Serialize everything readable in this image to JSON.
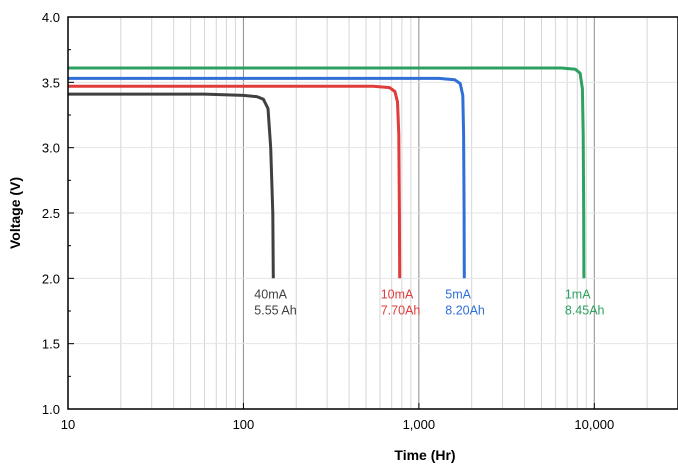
{
  "chart_data": {
    "type": "line",
    "title": "",
    "xlabel": "Time (Hr)",
    "ylabel": "Voltage (V)",
    "x_scale": "log",
    "xlim": [
      10,
      30000
    ],
    "ylim": [
      1.0,
      4.0
    ],
    "x_ticks": [
      {
        "value": 10,
        "label": "10"
      },
      {
        "value": 100,
        "label": "100"
      },
      {
        "value": 1000,
        "label": "1,000"
      },
      {
        "value": 10000,
        "label": "10,000"
      }
    ],
    "y_ticks": [
      {
        "value": 1.0,
        "label": "1.0"
      },
      {
        "value": 1.5,
        "label": "1.5"
      },
      {
        "value": 2.0,
        "label": "2.0"
      },
      {
        "value": 2.5,
        "label": "2.5"
      },
      {
        "value": 3.0,
        "label": "3.0"
      },
      {
        "value": 3.5,
        "label": "3.5"
      },
      {
        "value": 4.0,
        "label": "4.0"
      }
    ],
    "grid": true,
    "series": [
      {
        "color": "#404040",
        "x": [
          10,
          60,
          100,
          120,
          130,
          138,
          143,
          147,
          148
        ],
        "y": [
          3.41,
          3.41,
          3.4,
          3.39,
          3.37,
          3.3,
          3.0,
          2.5,
          2.0
        ],
        "annotation": [
          "40mA",
          "5.55 Ah"
        ]
      },
      {
        "color": "#e03c3c",
        "x": [
          10,
          300,
          550,
          680,
          730,
          755,
          768,
          775,
          778
        ],
        "y": [
          3.47,
          3.47,
          3.47,
          3.46,
          3.43,
          3.35,
          3.1,
          2.5,
          2.0
        ],
        "annotation": [
          "10mA",
          "7.70Ah"
        ]
      },
      {
        "color": "#2f6fd6",
        "x": [
          10,
          600,
          1300,
          1600,
          1720,
          1780,
          1800,
          1810,
          1815
        ],
        "y": [
          3.53,
          3.53,
          3.53,
          3.52,
          3.49,
          3.4,
          3.1,
          2.5,
          2.0
        ],
        "annotation": [
          "5mA",
          "8.20Ah"
        ]
      },
      {
        "color": "#2ea060",
        "x": [
          10,
          3000,
          6500,
          7800,
          8300,
          8550,
          8650,
          8700,
          8720
        ],
        "y": [
          3.61,
          3.61,
          3.61,
          3.6,
          3.57,
          3.45,
          3.1,
          2.5,
          2.0
        ],
        "annotation": [
          "1mA",
          "8.45Ah"
        ]
      }
    ]
  }
}
